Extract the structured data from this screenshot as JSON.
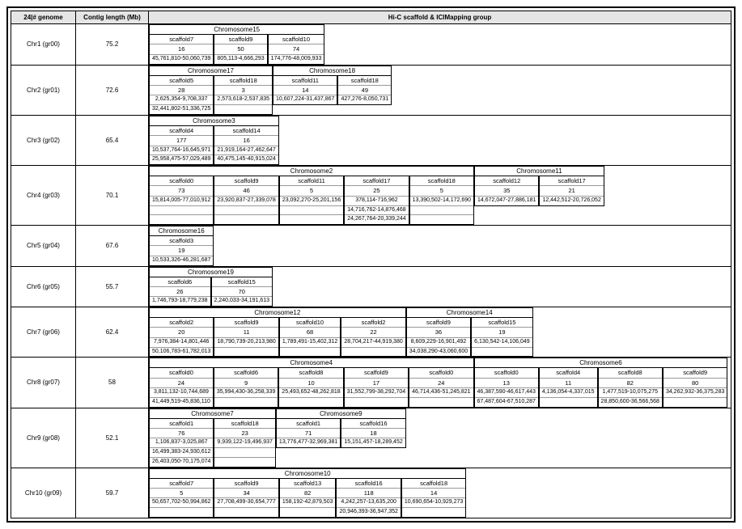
{
  "headers": {
    "genome": "24|# genome",
    "contig": "Contig length (Mb)",
    "group": "Hi-C scaffold & ICIMapping group"
  },
  "rows": [
    {
      "label": "Chr1 (gr00)",
      "contig": "75.2",
      "blocks": [
        {
          "title": "Chromosome15",
          "scaffolds": [
            {
              "name": "scaffold7",
              "val": "16",
              "ranges": [
                "45,761,810-50,060,739"
              ]
            },
            {
              "name": "scaffold9",
              "val": "50",
              "ranges": [
                "805,113-4,666,293"
              ]
            },
            {
              "name": "scaffold10",
              "val": "74",
              "ranges": [
                "174,776-48,009,933"
              ]
            }
          ]
        }
      ]
    },
    {
      "label": "Chr2 (gr01)",
      "contig": "72.6",
      "blocks": [
        {
          "title": "Chromosome17",
          "scaffolds": [
            {
              "name": "scaffold5",
              "val": "28",
              "ranges": [
                "2,625,354-9,708,337",
                "32,441,802-51,336,725"
              ]
            },
            {
              "name": "scaffold18",
              "val": "3",
              "ranges": [
                "2,573,618-2,537,835"
              ]
            }
          ]
        },
        {
          "title": "Chromosome18",
          "scaffolds": [
            {
              "name": "scaffold11",
              "val": "14",
              "ranges": [
                "10,607,224-31,437,867"
              ]
            },
            {
              "name": "scaffold18",
              "val": "49",
              "ranges": [
                "427,276-8,050,731"
              ]
            }
          ]
        }
      ]
    },
    {
      "label": "Chr3 (gr02)",
      "contig": "65.4",
      "blocks": [
        {
          "title": "Chromosome3",
          "scaffolds": [
            {
              "name": "scaffold4",
              "val": "177",
              "ranges": [
                "10,537,764-16,645,971",
                "25,958,475-57,029,489"
              ]
            },
            {
              "name": "scaffold14",
              "val": "16",
              "ranges": [
                "21,919,164-27,462,647",
                "40,475,145-40,915,024"
              ]
            }
          ]
        }
      ]
    },
    {
      "label": "Chr4 (gr03)",
      "contig": "70.1",
      "blocks": [
        {
          "title": "Chromosome2",
          "scaffolds": [
            {
              "name": "scaffold0",
              "val": "73",
              "ranges": [
                "15,814,005-77,010,912"
              ]
            },
            {
              "name": "scaffold9",
              "val": "46",
              "ranges": [
                "23,920,837-27,339,078"
              ]
            },
            {
              "name": "scaffold11",
              "val": "5",
              "ranges": [
                "23,092,270-25,201,156"
              ]
            },
            {
              "name": "scaffold17",
              "val": "25",
              "ranges": [
                "378,114-716,962",
                "14,716,762-14,876,468",
                "24,267,764-20,339,244"
              ]
            },
            {
              "name": "scaffold18",
              "val": "5",
              "ranges": [
                "13,390,502-14,172,690"
              ]
            }
          ]
        },
        {
          "title": "Chromosome11",
          "scaffolds": [
            {
              "name": "scaffold12",
              "val": "35",
              "ranges": [
                "14,672,047-27,886,181"
              ]
            },
            {
              "name": "scaffold17",
              "val": "21",
              "ranges": [
                "12,442,512-20,726,052"
              ]
            }
          ]
        }
      ]
    },
    {
      "label": "Chr5 (gr04)",
      "contig": "67.6",
      "blocks": [
        {
          "title": "Chromosome16",
          "scaffolds": [
            {
              "name": "scaffold3",
              "val": "19",
              "ranges": [
                "10,533,326-46,281,687"
              ]
            }
          ]
        }
      ]
    },
    {
      "label": "Chr6 (gr05)",
      "contig": "55.7",
      "blocks": [
        {
          "title": "Chromosome19",
          "scaffolds": [
            {
              "name": "scaffold6",
              "val": "26",
              "ranges": [
                "1,746,793-18,779,238"
              ]
            },
            {
              "name": "scaffold15",
              "val": "70",
              "ranges": [
                "2,240,033-34,191,613"
              ]
            }
          ]
        }
      ]
    },
    {
      "label": "Chr7 (gr06)",
      "contig": "62.4",
      "blocks": [
        {
          "title": "Chromosome12",
          "scaffolds": [
            {
              "name": "scaffold2",
              "val": "20",
              "ranges": [
                "7,976,384-14,801,446",
                "50,106,783-61,782,013"
              ]
            },
            {
              "name": "scaffold9",
              "val": "11",
              "ranges": [
                "18,790,739-20,213,980"
              ]
            },
            {
              "name": "scaffold10",
              "val": "68",
              "ranges": [
                "1,789,491-15,402,312"
              ]
            },
            {
              "name": "scaffold2",
              "val": "22",
              "ranges": [
                "28,704,217-44,919,380"
              ]
            }
          ]
        },
        {
          "title": "Chromosome14",
          "scaffolds": [
            {
              "name": "scaffold9",
              "val": "36",
              "ranges": [
                "8,609,229-16,901,492",
                "34,038,290-43,060,600"
              ]
            },
            {
              "name": "scaffold15",
              "val": "19",
              "ranges": [
                "6,130,542-14,106,049"
              ]
            }
          ]
        }
      ]
    },
    {
      "label": "Chr8 (gr07)",
      "contig": "58",
      "blocks": [
        {
          "title": "Chromosome4",
          "scaffolds": [
            {
              "name": "scaffold0",
              "val": "24",
              "ranges": [
                "3,811,132-10,744,689",
                "41,449,519-45,836,110"
              ]
            },
            {
              "name": "scaffold6",
              "val": "9",
              "ranges": [
                "35,994,430-36,258,339"
              ]
            },
            {
              "name": "scaffold8",
              "val": "10",
              "ranges": [
                "25,493,652-48,262,818"
              ]
            },
            {
              "name": "scaffold9",
              "val": "17",
              "ranges": [
                "31,552,799-38,292,704"
              ]
            },
            {
              "name": "scaffold0",
              "val": "24",
              "ranges": [
                "46,714,436-51,245,821"
              ]
            }
          ]
        },
        {
          "title": "Chromosome6",
          "scaffolds": [
            {
              "name": "scaffold0",
              "val": "13",
              "ranges": [
                "46,387,590-46,617,443",
                "67,487,604-67,510,287"
              ]
            },
            {
              "name": "scaffold4",
              "val": "11",
              "ranges": [
                "4,136,054-4,337,015"
              ]
            },
            {
              "name": "scaffold8",
              "val": "82",
              "ranges": [
                "1,477,519-10,075,275",
                "28,850,600-36,566,568"
              ]
            },
            {
              "name": "scaffold9",
              "val": "80",
              "ranges": [
                "34,262,932-36,375,283"
              ]
            }
          ]
        }
      ]
    },
    {
      "label": "Chr9 (gr08)",
      "contig": "52.1",
      "blocks": [
        {
          "title": "Chromosome7",
          "scaffolds": [
            {
              "name": "scaffold1",
              "val": "76",
              "ranges": [
                "1,106,837-3,025,867",
                "16,499,383-24,930,612",
                "26,403,050-70,175,074"
              ]
            },
            {
              "name": "scaffold18",
              "val": "23",
              "ranges": [
                "9,939,122-19,496,937"
              ]
            }
          ]
        },
        {
          "title": "Chromosome9",
          "scaffolds": [
            {
              "name": "scaffold1",
              "val": "71",
              "ranges": [
                "13,776,477-32,969,381"
              ]
            },
            {
              "name": "scaffold16",
              "val": "18",
              "ranges": [
                "15,151,457-18,289,452"
              ]
            }
          ]
        }
      ]
    },
    {
      "label": "Chr10 (gr09)",
      "contig": "59.7",
      "blocks": [
        {
          "title": "Chromosome10",
          "scaffolds": [
            {
              "name": "scaffold7",
              "val": "5",
              "ranges": [
                "50,657,702-50,994,862"
              ]
            },
            {
              "name": "scaffold9",
              "val": "34",
              "ranges": [
                "27,708,499-30,654,777"
              ]
            },
            {
              "name": "scaffold13",
              "val": "82",
              "ranges": [
                "158,192-42,879,503"
              ]
            },
            {
              "name": "scaffold16",
              "val": "118",
              "ranges": [
                "4,242,257-13,635,200",
                "20,946,393-36,947,352"
              ]
            },
            {
              "name": "scaffold18",
              "val": "14",
              "ranges": [
                "10,690,654-10,929,273"
              ]
            }
          ]
        }
      ]
    }
  ]
}
